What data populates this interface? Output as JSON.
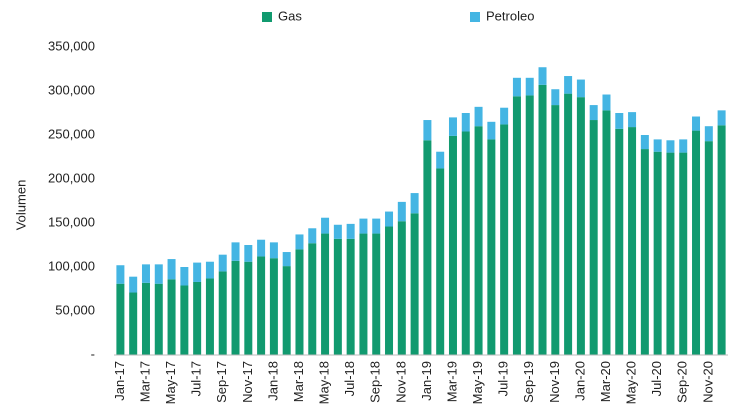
{
  "chart_data": {
    "type": "stacked_bar",
    "y_label": "Volumen",
    "categories": [
      "Jan-17",
      null,
      "Mar-17",
      null,
      "May-17",
      null,
      "Jul-17",
      null,
      "Sep-17",
      null,
      "Nov-17",
      null,
      "Jan-18",
      null,
      "Mar-18",
      null,
      "May-18",
      null,
      "Jul-18",
      null,
      "Sep-18",
      null,
      "Nov-18",
      null,
      "Jan-19",
      null,
      "Mar-19",
      null,
      "May-19",
      null,
      "Jul-19",
      null,
      "Sep-19",
      null,
      "Nov-19",
      null,
      "Jan-20",
      null,
      "Mar-20",
      null,
      "May-20",
      null,
      "Jul-20",
      null,
      "Sep-20",
      null,
      "Nov-20",
      null
    ],
    "series": [
      {
        "name": "Gas",
        "color": "#119a6f",
        "values": [
          81000,
          71000,
          82000,
          81000,
          86000,
          79000,
          83000,
          87000,
          95000,
          107000,
          106000,
          112000,
          110000,
          101000,
          120000,
          127000,
          138000,
          132000,
          132000,
          138000,
          138000,
          146000,
          152000,
          161000,
          244000,
          212000,
          249000,
          254000,
          260000,
          245000,
          262000,
          294000,
          295000,
          307000,
          284000,
          297000,
          293000,
          267000,
          278000,
          257000,
          259000,
          234000,
          231000,
          230000,
          230000,
          255000,
          243000,
          261000
        ]
      },
      {
        "name": "Petroleo",
        "color": "#44b5e3",
        "values": [
          21000,
          18000,
          21000,
          22000,
          23000,
          21000,
          22000,
          19000,
          19000,
          21000,
          19000,
          19000,
          18000,
          16000,
          17000,
          17000,
          18000,
          16000,
          17000,
          17000,
          17000,
          17000,
          22000,
          23000,
          23000,
          19000,
          21000,
          21000,
          22000,
          20000,
          19000,
          21000,
          20000,
          20000,
          18000,
          20000,
          20000,
          17000,
          18000,
          18000,
          17000,
          16000,
          14000,
          14000,
          15000,
          16000,
          17000,
          17000
        ]
      }
    ],
    "ylim": [
      0,
      350000
    ],
    "yticks": [
      {
        "value": 0,
        "label": "-"
      },
      {
        "value": 50000,
        "label": "50,000"
      },
      {
        "value": 100000,
        "label": "100,000"
      },
      {
        "value": 150000,
        "label": "150,000"
      },
      {
        "value": 200000,
        "label": "200,000"
      },
      {
        "value": 250000,
        "label": "250,000"
      },
      {
        "value": 300000,
        "label": "300,000"
      },
      {
        "value": 350000,
        "label": "350,000"
      }
    ],
    "legend": "top"
  }
}
